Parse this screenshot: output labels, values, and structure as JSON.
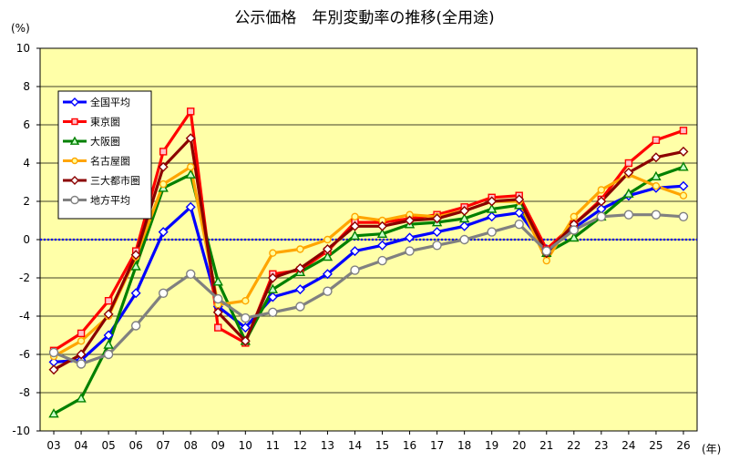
{
  "chart_data": {
    "type": "line",
    "title": "公示価格　年別変動率の推移(全用途)",
    "y_unit": "(%)",
    "x_unit": "(年)",
    "categories": [
      "03",
      "04",
      "05",
      "06",
      "07",
      "08",
      "09",
      "10",
      "11",
      "12",
      "13",
      "14",
      "15",
      "16",
      "17",
      "18",
      "19",
      "20",
      "21",
      "22",
      "23",
      "24",
      "25",
      "26"
    ],
    "ylim": [
      -10,
      10
    ],
    "yticks": [
      10,
      8,
      6,
      4,
      2,
      0,
      -2,
      -4,
      -6,
      -8,
      -10
    ],
    "grid": true,
    "legend_position": "top-left",
    "reference_line": {
      "y": 0,
      "style": "dotted",
      "color": "#0000ee"
    },
    "series": [
      {
        "name": "全国平均",
        "color": "#0000ff",
        "marker": "diamond",
        "values": [
          -6.4,
          -6.3,
          -5.0,
          -2.8,
          0.4,
          1.7,
          -3.5,
          -4.6,
          -3.0,
          -2.6,
          -1.8,
          -0.6,
          -0.3,
          0.1,
          0.4,
          0.7,
          1.2,
          1.4,
          -0.5,
          0.6,
          1.6,
          2.3,
          2.7,
          2.8
        ]
      },
      {
        "name": "東京圏",
        "color": "#ff0000",
        "marker": "square",
        "values": [
          -5.8,
          -4.9,
          -3.2,
          -0.6,
          4.6,
          6.7,
          -4.6,
          -5.4,
          -1.8,
          -1.6,
          -0.6,
          0.9,
          0.9,
          1.1,
          1.3,
          1.7,
          2.2,
          2.3,
          -0.5,
          0.8,
          2.1,
          4.0,
          5.2,
          5.7
        ]
      },
      {
        "name": "大阪圏",
        "color": "#008000",
        "marker": "triangle",
        "values": [
          -9.1,
          -8.3,
          -5.5,
          -1.4,
          2.7,
          3.4,
          -2.2,
          -5.3,
          -2.6,
          -1.7,
          -0.9,
          0.2,
          0.3,
          0.8,
          0.9,
          1.1,
          1.6,
          1.8,
          -0.7,
          0.1,
          1.2,
          2.4,
          3.3,
          3.8
        ]
      },
      {
        "name": "名古屋圏",
        "color": "#ffa500",
        "marker": "circle",
        "values": [
          -6.1,
          -5.3,
          -4.0,
          -0.9,
          2.9,
          3.8,
          -3.4,
          -3.2,
          -0.7,
          -0.5,
          0.0,
          1.2,
          1.0,
          1.3,
          1.2,
          1.5,
          2.0,
          2.0,
          -1.1,
          1.2,
          2.6,
          3.4,
          2.8,
          2.3
        ]
      },
      {
        "name": "三大都市圏",
        "color": "#8b0000",
        "marker": "diamond",
        "values": [
          -6.8,
          -6.0,
          -3.9,
          -0.8,
          3.8,
          5.3,
          -3.8,
          -5.3,
          -2.0,
          -1.5,
          -0.5,
          0.7,
          0.7,
          1.0,
          1.1,
          1.5,
          2.0,
          2.1,
          -0.7,
          0.8,
          2.0,
          3.5,
          4.3,
          4.6
        ]
      },
      {
        "name": "地方平均",
        "color": "#808080",
        "marker": "circle-hollow",
        "values": [
          -5.9,
          -6.5,
          -6.0,
          -4.5,
          -2.8,
          -1.8,
          -3.1,
          -4.1,
          -3.8,
          -3.5,
          -2.7,
          -1.6,
          -1.1,
          -0.6,
          -0.3,
          0.0,
          0.4,
          0.8,
          -0.6,
          0.5,
          1.2,
          1.3,
          1.3,
          1.2
        ]
      }
    ]
  }
}
